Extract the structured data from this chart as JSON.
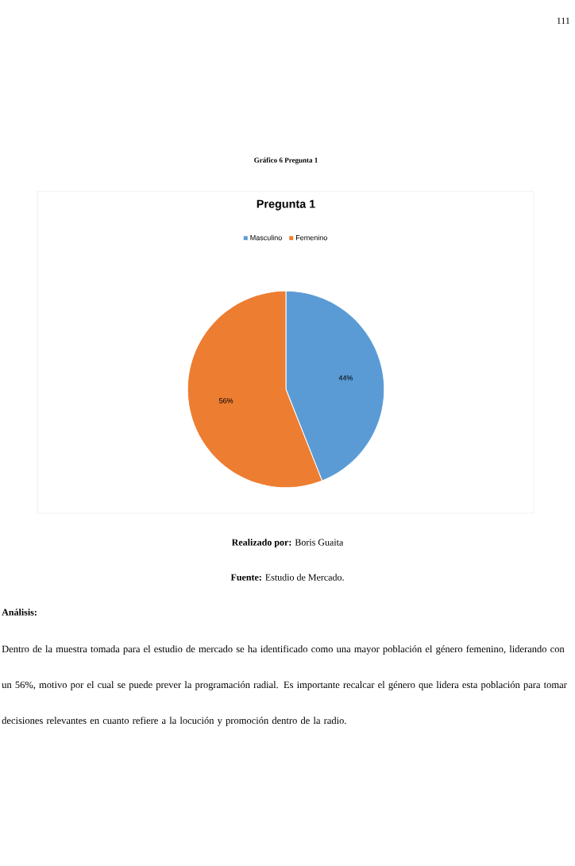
{
  "chart_data": {
    "type": "pie",
    "title": "Pregunta 1",
    "categories": [
      "Masculino",
      "Femenino"
    ],
    "values": [
      44,
      56
    ],
    "value_labels": [
      "44%",
      "56%"
    ],
    "colors": [
      "#5b9bd5",
      "#ed7d31"
    ],
    "legend": "top",
    "annotations": [
      "111",
      "Gráfico 6 Pregunta 1",
      "**Realizado por:** Boris Guaita",
      "**Fuente:** Estudio de Mercado.",
      "**Análisis:**",
      "Dentro de la muestra tomada para el estudio de mercado se ha identificado como una mayor población el género femenino, liderando con un 56%, motivo por el cual se puede prever la programación radial. Es importante recalcar el género que lidera esta población para tomar decisiones relevantes en cuanto refiere a la locución y promoción dentro de la radio."
    ]
  }
}
